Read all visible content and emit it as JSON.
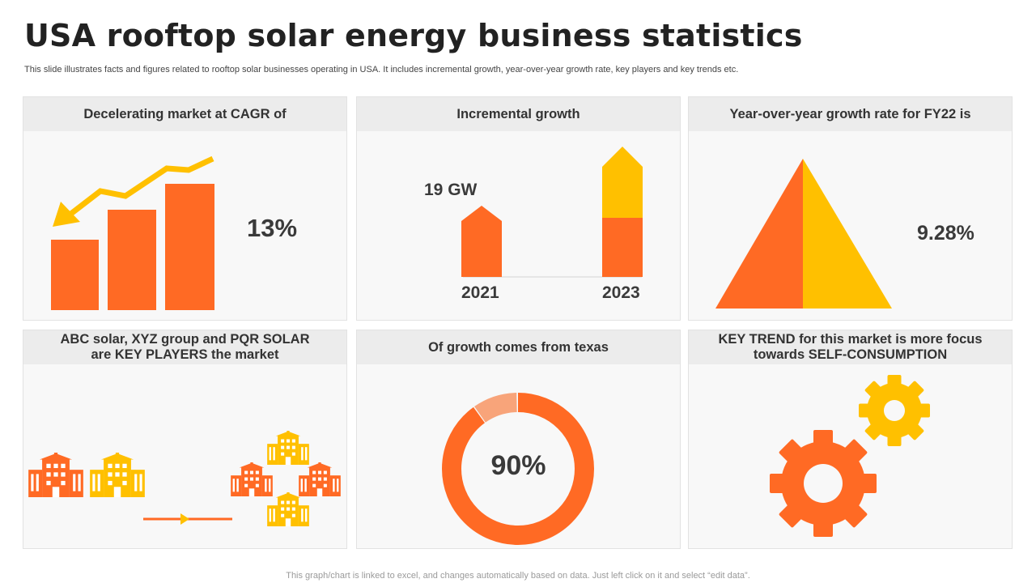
{
  "title": "USA rooftop solar energy business statistics",
  "subtitle": "This slide illustrates facts and figures related to rooftop solar businesses operating in USA. It includes incremental growth, year-over-year growth rate,  key players and key trends etc.",
  "colors": {
    "orange": "#FF6A24",
    "yellow": "#FFC000",
    "light_orange": "#F8A47A",
    "card_bg": "#F8F8F8",
    "head_bg": "#ECECEC"
  },
  "cards": {
    "cagr": {
      "heading": "Decelerating market at CAGR  of",
      "value": "13%"
    },
    "incremental": {
      "heading": "Incremental growth",
      "label": "19 GW",
      "year_start": "2021",
      "year_end": "2023"
    },
    "yoy": {
      "heading": "Year-over-year growth rate for FY22 is",
      "value": "9.28%"
    },
    "players": {
      "heading_line1": "ABC solar, XYZ group and PQR SOLAR",
      "heading_line2": "are KEY PLAYERS the market"
    },
    "texas": {
      "heading": "Of growth comes from texas",
      "value": "90%",
      "share_fraction": 0.9
    },
    "trend": {
      "heading_line1": "KEY TREND for this market is more focus",
      "heading_line2": "towards SELF-CONSUMPTION"
    }
  },
  "footer": "This graph/chart is linked to excel,  and changes automatically based on data. Just left click on it and select “edit data”."
}
